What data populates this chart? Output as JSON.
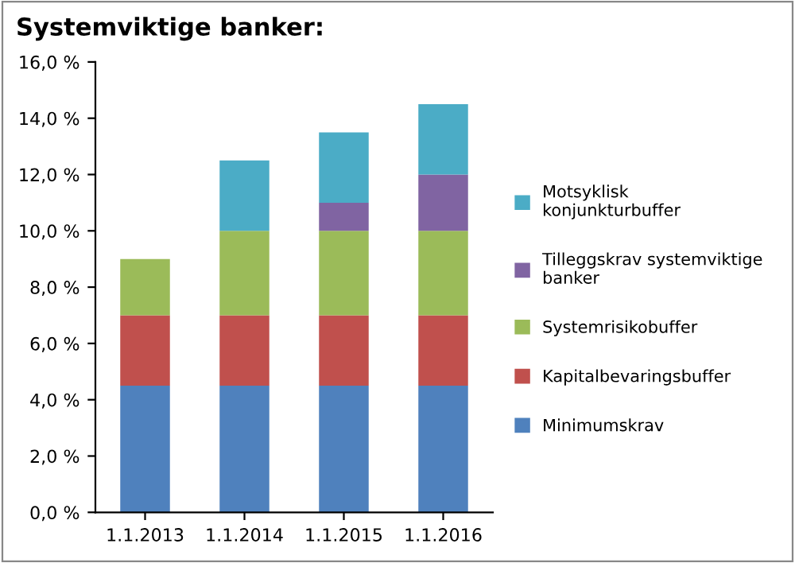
{
  "chart_data": {
    "type": "bar",
    "title": "Systemviktige banker:",
    "stacked": true,
    "categories": [
      "1.1.2013",
      "1.1.2014",
      "1.1.2015",
      "1.1.2016"
    ],
    "series": [
      {
        "name": "Minimumskrav",
        "color": "#4f81bd",
        "values": [
          4.5,
          4.5,
          4.5,
          4.5
        ]
      },
      {
        "name": "Kapitalbevaringsbuffer",
        "color": "#c0504d",
        "values": [
          2.5,
          2.5,
          2.5,
          2.5
        ]
      },
      {
        "name": "Systemrisikobuffer",
        "color": "#9bbb59",
        "values": [
          2,
          3,
          3,
          3
        ]
      },
      {
        "name": "Tilleggskrav systemviktige\nbanker",
        "color": "#8064a2",
        "values": [
          null,
          null,
          1,
          2
        ]
      },
      {
        "name": "Motsyklisk\nkonjunkturbuffer",
        "color": "#4bacc6",
        "values": [
          null,
          2.5,
          2.5,
          2.5
        ]
      }
    ],
    "ylim": [
      0,
      16
    ],
    "yticks": [
      {
        "value": 0,
        "label": "0,0 %"
      },
      {
        "value": 2,
        "label": "2,0 %"
      },
      {
        "value": 4,
        "label": "4,0 %"
      },
      {
        "value": 6,
        "label": "6,0 %"
      },
      {
        "value": 8,
        "label": "8,0 %"
      },
      {
        "value": 10,
        "label": "10,0 %"
      },
      {
        "value": 12,
        "label": "12,0 %"
      },
      {
        "value": 14,
        "label": "14,0 %"
      },
      {
        "value": 16,
        "label": "16,0 %"
      }
    ],
    "legend": "right",
    "grid": false
  }
}
